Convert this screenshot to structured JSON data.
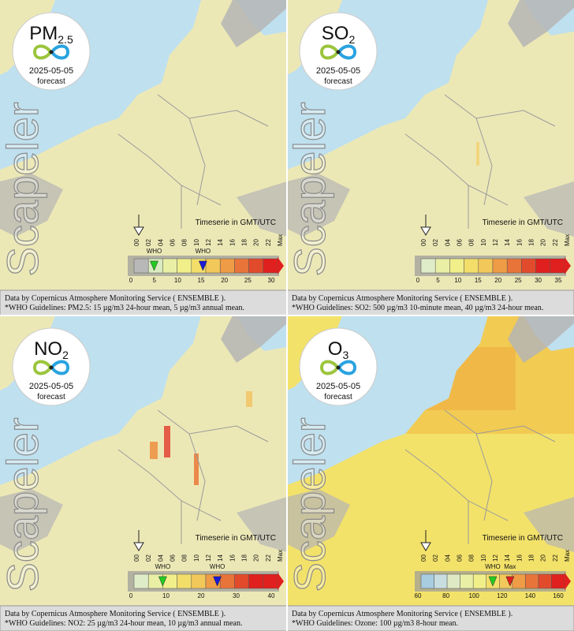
{
  "panels": [
    {
      "pollutant": {
        "main": "PM",
        "sub": "2.5"
      },
      "date": "2025-05-05",
      "label": "forecast",
      "watermark": "Scapeler",
      "timeseries_title": "Timeserie in GMT/UTC",
      "hours": [
        "00",
        "02",
        "04",
        "06",
        "08",
        "10",
        "12",
        "14",
        "16",
        "18",
        "20",
        "22",
        "Max"
      ],
      "who_labels": [
        "WHO",
        "WHO"
      ],
      "scale_ticks": [
        0,
        5,
        10,
        15,
        20,
        25,
        30
      ],
      "footer": [
        "Data by Copernicus Atmosphere Monitoring Service ( ENSEMBLE ).",
        "*WHO Guidelines: PM2.5: 15 µg/m3 24-hour mean, 5 µg/m3 annual mean."
      ]
    },
    {
      "pollutant": {
        "main": "SO",
        "sub": "2"
      },
      "date": "2025-05-05",
      "label": "forecast",
      "watermark": "Scapeler",
      "timeseries_title": "Timeserie in GMT/UTC",
      "hours": [
        "00",
        "02",
        "04",
        "06",
        "08",
        "10",
        "12",
        "14",
        "16",
        "18",
        "20",
        "22",
        "Max"
      ],
      "who_labels": [],
      "scale_ticks": [
        0,
        5,
        10,
        15,
        20,
        25,
        30,
        35
      ],
      "footer": [
        "Data by Copernicus Atmosphere Monitoring Service ( ENSEMBLE ).",
        "*WHO Guidelines: SO2: 500 µg/m3 10-minute mean, 40 µg/m3 24-hour mean."
      ]
    },
    {
      "pollutant": {
        "main": "NO",
        "sub": "2"
      },
      "date": "2025-05-05",
      "label": "forecast",
      "watermark": "Scapeler",
      "timeseries_title": "Timeserie in GMT/UTC",
      "hours": [
        "00",
        "02",
        "04",
        "06",
        "08",
        "10",
        "12",
        "14",
        "16",
        "18",
        "20",
        "22",
        "Max"
      ],
      "who_labels": [
        "WHO",
        "WHO"
      ],
      "scale_ticks": [
        0,
        10,
        20,
        30,
        40
      ],
      "footer": [
        "Data by Copernicus Atmosphere Monitoring Service ( ENSEMBLE ).",
        "*WHO Guidelines: NO2: 25 µg/m3 24-hour mean, 10 µg/m3 annual mean."
      ]
    },
    {
      "pollutant": {
        "main": "O",
        "sub": "3"
      },
      "date": "2025-05-05",
      "label": "forecast",
      "watermark": "Scapeler",
      "timeseries_title": "Timeserie in GMT/UTC",
      "hours": [
        "00",
        "02",
        "04",
        "06",
        "08",
        "10",
        "12",
        "14",
        "16",
        "18",
        "20",
        "22",
        "Max"
      ],
      "who_labels": [
        "WHO",
        "Max"
      ],
      "scale_ticks": [
        60,
        80,
        100,
        120,
        140,
        160
      ],
      "footer": [
        "Data by Copernicus Atmosphere Monitoring Service ( ENSEMBLE ).",
        "*WHO Guidelines: Ozone: 100 µg/m3 8-hour mean."
      ]
    }
  ]
}
